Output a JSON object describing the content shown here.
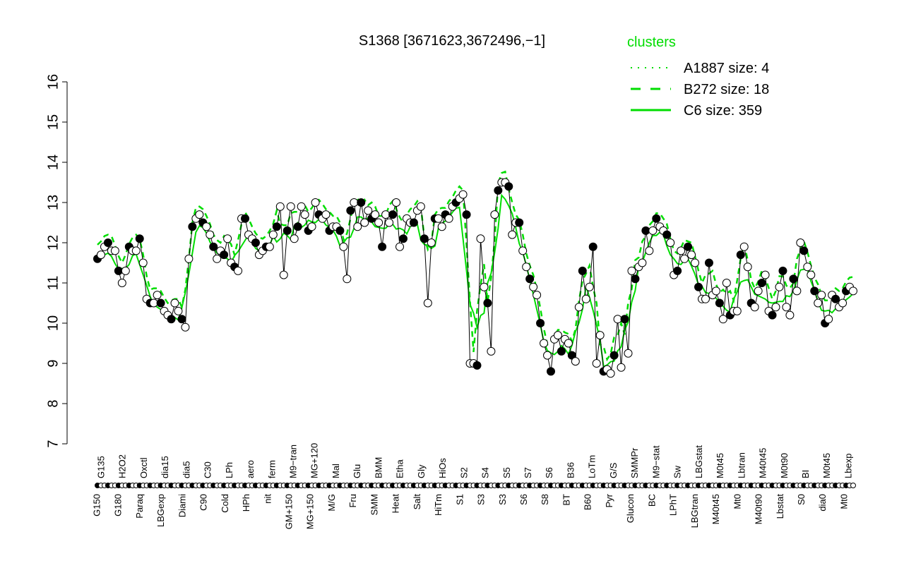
{
  "chart_data": {
    "type": "line",
    "title": "S1368 [3671623,3672496,−1]",
    "ylim": [
      7,
      16
    ],
    "yticks": [
      7,
      8,
      9,
      10,
      11,
      12,
      13,
      14,
      15,
      16
    ],
    "grid": false,
    "legend": {
      "title": "clusters",
      "placement": "top-right",
      "entries": [
        {
          "label": "A1887 size: 4",
          "style": "dotted"
        },
        {
          "label": "B272 size: 18",
          "style": "dashed"
        },
        {
          "label": "C6 size: 359",
          "style": "solid"
        }
      ]
    },
    "colors": {
      "cluster": "#00dd00",
      "points": "#000000"
    },
    "xtick_labels_upper": [
      "G135",
      "H2O2",
      "Oxctl",
      "dia15",
      "dia5",
      "C30",
      "LPh",
      "aero",
      "ferm",
      "M9−tran",
      "MG+120",
      "Mal",
      "Glu",
      "BMM",
      "Etha",
      "Gly",
      "HiOs",
      "S2",
      "S4",
      "S5",
      "S7",
      "S6",
      "B36",
      "LoTm",
      "G/S",
      "SMMPr",
      "M9−stat",
      "Sw",
      "LBGstat",
      "M0t45",
      "Lbtran",
      "M40t45",
      "M0t90",
      "BI",
      "M0t45",
      "Lbexp"
    ],
    "xtick_labels_lower": [
      "G150",
      "G180",
      "Paraq",
      "LBGexp",
      "Diami",
      "C90",
      "Cold",
      "HPh",
      "nit",
      "GM+150",
      "MG+150",
      "M/G",
      "Fru",
      "SMM",
      "Heat",
      "Salt",
      "HiTm",
      "S1",
      "S3",
      "S3",
      "S6",
      "S8",
      "BT",
      "B60",
      "Pyr",
      "Glucon",
      "BC",
      "LPhT",
      "LBGtran",
      "M40t45",
      "Mt0",
      "M40t90",
      "Lbstat",
      "S0",
      "dia0",
      "Mt0"
    ],
    "values": [
      11.6,
      11.7,
      11.9,
      12.0,
      11.8,
      11.8,
      11.3,
      11.0,
      11.3,
      11.9,
      11.8,
      11.8,
      12.1,
      11.5,
      10.6,
      10.5,
      10.5,
      10.7,
      10.5,
      10.3,
      10.2,
      10.1,
      10.5,
      10.3,
      10.1,
      9.9,
      11.6,
      12.4,
      12.6,
      12.7,
      12.5,
      12.4,
      12.2,
      11.9,
      11.6,
      11.8,
      11.7,
      12.1,
      11.5,
      11.4,
      11.3,
      12.6,
      12.6,
      12.2,
      12.1,
      12.0,
      11.7,
      11.8,
      11.9,
      11.9,
      12.2,
      12.4,
      12.9,
      11.2,
      12.3,
      12.9,
      12.1,
      12.4,
      12.9,
      12.7,
      12.3,
      12.4,
      13.0,
      12.7,
      12.6,
      12.7,
      12.3,
      12.4,
      12.4,
      12.3,
      11.9,
      11.1,
      12.8,
      13.0,
      12.4,
      13.0,
      12.5,
      12.8,
      12.6,
      12.7,
      12.5,
      11.9,
      12.7,
      12.5,
      12.7,
      13.0,
      11.9,
      12.1,
      12.6,
      12.5,
      12.5,
      12.8,
      12.9,
      12.1,
      10.5,
      12.0,
      12.6,
      12.6,
      12.4,
      12.7,
      12.6,
      12.9,
      13.0,
      13.1,
      13.2,
      12.7,
      9.0,
      9.0,
      8.95,
      12.1,
      10.9,
      10.5,
      9.3,
      12.7,
      13.3,
      13.5,
      13.5,
      13.4,
      12.2,
      12.5,
      12.5,
      11.8,
      11.4,
      11.1,
      10.9,
      10.7,
      10.0,
      9.5,
      9.2,
      8.8,
      9.6,
      9.7,
      9.3,
      9.6,
      9.5,
      9.2,
      9.05,
      10.4,
      11.3,
      10.6,
      10.9,
      11.9,
      9.0,
      9.7,
      8.8,
      8.85,
      8.75,
      9.2,
      10.1,
      8.9,
      10.1,
      9.25,
      11.3,
      11.1,
      11.4,
      11.5,
      12.3,
      11.8,
      12.3,
      12.6,
      12.4,
      12.3,
      12.2,
      12.0,
      11.2,
      11.3,
      11.8,
      11.6,
      11.9,
      11.7,
      11.5,
      10.9,
      10.6,
      10.6,
      11.5,
      10.7,
      10.8,
      10.5,
      10.1,
      11.0,
      10.2,
      10.3,
      10.3,
      11.7,
      11.9,
      11.4,
      10.5,
      10.4,
      10.8,
      11.0,
      11.2,
      10.3,
      10.2,
      10.4,
      10.9,
      11.3,
      10.4,
      10.2,
      11.1,
      10.8,
      12.0,
      11.8,
      11.4,
      11.2,
      10.8,
      10.5,
      10.7,
      10.0,
      10.1,
      10.7,
      10.6,
      10.4,
      10.5,
      10.8,
      10.9,
      10.8
    ]
  }
}
